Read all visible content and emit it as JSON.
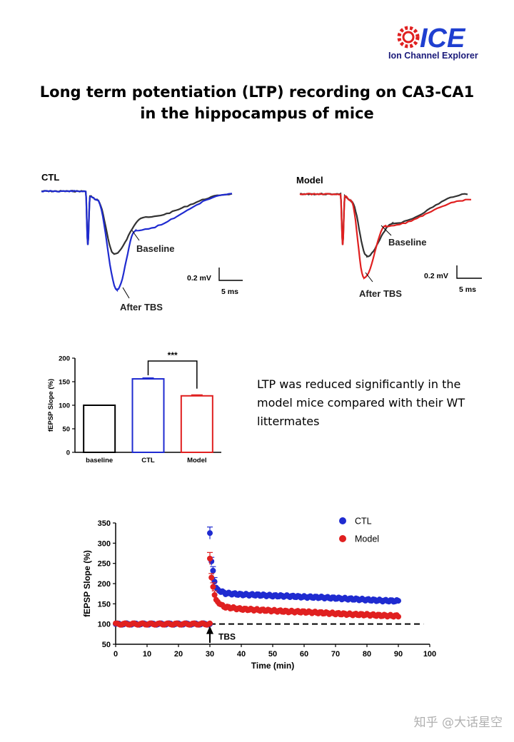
{
  "logo": {
    "letters": "ICE",
    "text": "Ion Channel Explorer"
  },
  "title": {
    "line1": "Long term potentiation (LTP)  recording on CA3-CA1",
    "line2": "in the hippocampus of mice"
  },
  "traces": {
    "ctl": {
      "label": "CTL",
      "baseline_label": "Baseline",
      "after_label": "After TBS",
      "scale_mv": "0.2 mV",
      "scale_ms": "5 ms",
      "colors": {
        "baseline": "#333333",
        "after": "#1f2bd0"
      }
    },
    "model": {
      "label": "Model",
      "baseline_label": "Baseline",
      "after_label": "After TBS",
      "scale_mv": "0.2 mV",
      "scale_ms": "5 ms",
      "colors": {
        "baseline": "#333333",
        "after": "#e02020"
      }
    }
  },
  "note": "LTP was reduced significantly in the model mice compared with their WT littermates",
  "watermark": "知乎 @大话星空",
  "chart_data": [
    {
      "type": "bar",
      "ylabel": "fEPSP Slope (%)",
      "ylim": [
        0,
        200
      ],
      "yticks": [
        0,
        50,
        100,
        150,
        200
      ],
      "categories": [
        "baseline",
        "CTL",
        "Model"
      ],
      "values": [
        100,
        156,
        120
      ],
      "errors": [
        0,
        2,
        2
      ],
      "colors": [
        "#000000",
        "#1f2bd0",
        "#e02020"
      ],
      "significance": {
        "label": "***",
        "between": [
          "CTL",
          "Model"
        ]
      }
    },
    {
      "type": "scatter",
      "xlabel": "Time (min)",
      "ylabel": "fEPSP Slope (%)",
      "xlim": [
        0,
        100
      ],
      "ylim": [
        50,
        350
      ],
      "xticks": [
        0,
        10,
        20,
        30,
        40,
        50,
        60,
        70,
        80,
        90,
        100
      ],
      "yticks": [
        50,
        100,
        150,
        200,
        250,
        300,
        350
      ],
      "legend_position": "top-right",
      "annotation": {
        "label": "TBS",
        "x": 30
      },
      "reference_line": {
        "y": 100,
        "style": "dashed"
      },
      "series": [
        {
          "name": "CTL",
          "color": "#1f2bd0",
          "baseline_x": [
            0,
            30
          ],
          "baseline_y": 100,
          "x": [
            30,
            30.5,
            31,
            31.5,
            32,
            33,
            34,
            35,
            37,
            40,
            45,
            50,
            55,
            60,
            65,
            70,
            75,
            80,
            85,
            90
          ],
          "y": [
            325,
            255,
            232,
            205,
            190,
            182,
            179,
            176,
            175,
            173,
            172,
            170,
            169,
            167,
            166,
            164,
            162,
            160,
            158,
            157
          ]
        },
        {
          "name": "Model",
          "color": "#e02020",
          "baseline_x": [
            0,
            30
          ],
          "baseline_y": 100,
          "x": [
            30,
            30.5,
            31,
            31.5,
            32,
            33,
            34,
            35,
            37,
            40,
            45,
            50,
            55,
            60,
            65,
            70,
            75,
            80,
            85,
            90
          ],
          "y": [
            262,
            215,
            192,
            172,
            160,
            150,
            145,
            142,
            140,
            137,
            135,
            133,
            131,
            130,
            128,
            126,
            124,
            123,
            121,
            120
          ]
        }
      ]
    }
  ]
}
